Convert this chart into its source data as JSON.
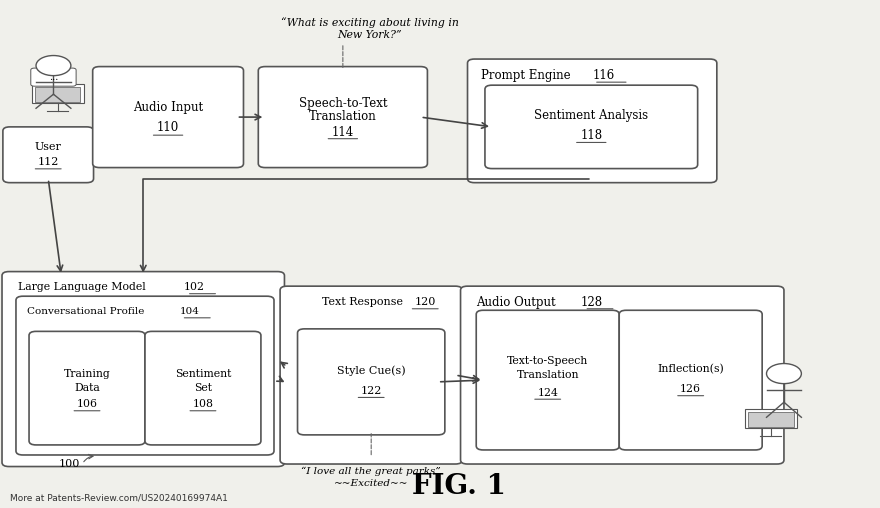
{
  "bg_color": "#f0f0eb",
  "box_facecolor": "#ffffff",
  "box_edgecolor": "#555555",
  "title": "FIG. 1",
  "watermark": "More at Patents-Review.com/US20240169974A1",
  "quote_top_line1": "“What is exciting about living in",
  "quote_top_line2": "New York?”",
  "quote_bottom_line1": "“I love all the great parks”",
  "quote_bottom_line2": "~~Excited~~",
  "ref_label": "100"
}
